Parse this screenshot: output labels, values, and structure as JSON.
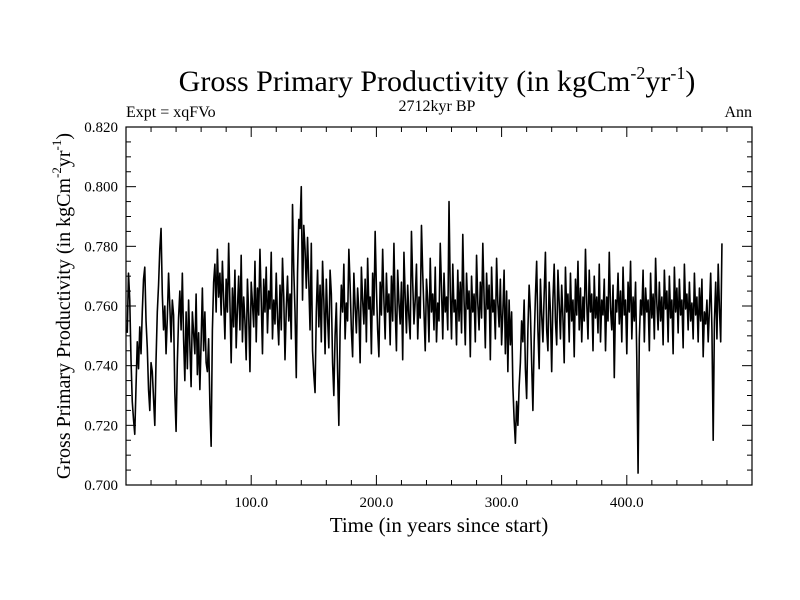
{
  "chart_data": {
    "type": "line",
    "title_main": "Gross Primary Productivity (in kgCm",
    "title_sup1": "-2",
    "title_mid": "yr",
    "title_sup2": "-1",
    "title_close": ")",
    "subtitle": "2712kyr BP",
    "left_label": "Expt = xqFVo",
    "right_label": "Ann",
    "xlabel": "Time (in years since start)",
    "ylabel_main": "Gross Primary Productivity (in kgCm",
    "ylabel_sup1": "-2",
    "ylabel_mid": "yr",
    "ylabel_sup2": "-1",
    "ylabel_close": ")",
    "xlim": [
      0,
      500
    ],
    "ylim": [
      0.7,
      0.82
    ],
    "x_ticks": [
      {
        "value": 100,
        "label": "100.0"
      },
      {
        "value": 200,
        "label": "200.0"
      },
      {
        "value": 300,
        "label": "300.0"
      },
      {
        "value": 400,
        "label": "400.0"
      }
    ],
    "y_ticks": [
      {
        "value": 0.7,
        "label": "0.700"
      },
      {
        "value": 0.72,
        "label": "0.720"
      },
      {
        "value": 0.74,
        "label": "0.740"
      },
      {
        "value": 0.76,
        "label": "0.760"
      },
      {
        "value": 0.78,
        "label": "0.780"
      },
      {
        "value": 0.8,
        "label": "0.800"
      },
      {
        "value": 0.82,
        "label": "0.820"
      }
    ],
    "series": [
      {
        "name": "GPP",
        "x_start": 1,
        "x_step": 1,
        "values": [
          0.751,
          0.771,
          0.762,
          0.742,
          0.728,
          0.722,
          0.717,
          0.733,
          0.748,
          0.739,
          0.753,
          0.744,
          0.758,
          0.769,
          0.773,
          0.755,
          0.746,
          0.732,
          0.725,
          0.741,
          0.738,
          0.729,
          0.72,
          0.742,
          0.758,
          0.767,
          0.779,
          0.786,
          0.764,
          0.752,
          0.76,
          0.744,
          0.756,
          0.771,
          0.76,
          0.748,
          0.762,
          0.757,
          0.731,
          0.718,
          0.741,
          0.756,
          0.765,
          0.752,
          0.771,
          0.749,
          0.735,
          0.758,
          0.739,
          0.762,
          0.747,
          0.733,
          0.758,
          0.751,
          0.744,
          0.764,
          0.737,
          0.751,
          0.732,
          0.748,
          0.766,
          0.745,
          0.758,
          0.741,
          0.738,
          0.749,
          0.727,
          0.713,
          0.752,
          0.768,
          0.774,
          0.758,
          0.779,
          0.763,
          0.771,
          0.757,
          0.775,
          0.762,
          0.749,
          0.769,
          0.758,
          0.781,
          0.761,
          0.741,
          0.766,
          0.753,
          0.772,
          0.746,
          0.759,
          0.77,
          0.752,
          0.777,
          0.748,
          0.763,
          0.755,
          0.742,
          0.769,
          0.757,
          0.738,
          0.768,
          0.761,
          0.753,
          0.775,
          0.748,
          0.766,
          0.757,
          0.779,
          0.762,
          0.744,
          0.769,
          0.758,
          0.773,
          0.751,
          0.765,
          0.759,
          0.778,
          0.749,
          0.762,
          0.754,
          0.771,
          0.756,
          0.747,
          0.767,
          0.752,
          0.776,
          0.763,
          0.742,
          0.759,
          0.77,
          0.755,
          0.764,
          0.749,
          0.794,
          0.772,
          0.758,
          0.736,
          0.771,
          0.789,
          0.786,
          0.8,
          0.762,
          0.787,
          0.779,
          0.766,
          0.783,
          0.768,
          0.752,
          0.781,
          0.745,
          0.737,
          0.731,
          0.758,
          0.772,
          0.753,
          0.767,
          0.748,
          0.775,
          0.762,
          0.744,
          0.769,
          0.756,
          0.746,
          0.772,
          0.764,
          0.741,
          0.73,
          0.75,
          0.761,
          0.738,
          0.72,
          0.752,
          0.767,
          0.758,
          0.774,
          0.749,
          0.761,
          0.755,
          0.779,
          0.767,
          0.752,
          0.743,
          0.771,
          0.76,
          0.751,
          0.766,
          0.758,
          0.741,
          0.773,
          0.762,
          0.754,
          0.769,
          0.748,
          0.776,
          0.759,
          0.763,
          0.744,
          0.771,
          0.757,
          0.785,
          0.766,
          0.752,
          0.743,
          0.768,
          0.757,
          0.779,
          0.762,
          0.749,
          0.771,
          0.758,
          0.764,
          0.747,
          0.77,
          0.755,
          0.781,
          0.759,
          0.745,
          0.772,
          0.761,
          0.754,
          0.768,
          0.742,
          0.778,
          0.763,
          0.751,
          0.767,
          0.756,
          0.749,
          0.785,
          0.768,
          0.754,
          0.762,
          0.774,
          0.749,
          0.763,
          0.756,
          0.787,
          0.771,
          0.758,
          0.745,
          0.769,
          0.762,
          0.748,
          0.776,
          0.758,
          0.764,
          0.752,
          0.773,
          0.748,
          0.761,
          0.755,
          0.781,
          0.766,
          0.749,
          0.771,
          0.758,
          0.763,
          0.752,
          0.795,
          0.765,
          0.749,
          0.774,
          0.758,
          0.762,
          0.747,
          0.772,
          0.755,
          0.768,
          0.751,
          0.784,
          0.762,
          0.747,
          0.771,
          0.759,
          0.765,
          0.743,
          0.77,
          0.758,
          0.764,
          0.748,
          0.777,
          0.761,
          0.752,
          0.768,
          0.756,
          0.781,
          0.763,
          0.746,
          0.771,
          0.759,
          0.767,
          0.742,
          0.773,
          0.758,
          0.762,
          0.749,
          0.776,
          0.761,
          0.753,
          0.769,
          0.747,
          0.758,
          0.772,
          0.744,
          0.765,
          0.738,
          0.762,
          0.747,
          0.758,
          0.733,
          0.722,
          0.714,
          0.728,
          0.72,
          0.733,
          0.741,
          0.755,
          0.748,
          0.762,
          0.739,
          0.729,
          0.752,
          0.767,
          0.758,
          0.741,
          0.725,
          0.748,
          0.763,
          0.775,
          0.752,
          0.739,
          0.769,
          0.757,
          0.748,
          0.764,
          0.778,
          0.752,
          0.745,
          0.768,
          0.758,
          0.738,
          0.762,
          0.774,
          0.755,
          0.747,
          0.772,
          0.761,
          0.749,
          0.767,
          0.756,
          0.741,
          0.773,
          0.758,
          0.764,
          0.748,
          0.771,
          0.755,
          0.762,
          0.743,
          0.769,
          0.757,
          0.775,
          0.752,
          0.766,
          0.748,
          0.763,
          0.755,
          0.779,
          0.761,
          0.749,
          0.772,
          0.758,
          0.764,
          0.745,
          0.77,
          0.756,
          0.763,
          0.751,
          0.774,
          0.748,
          0.762,
          0.757,
          0.769,
          0.745,
          0.763,
          0.755,
          0.778,
          0.759,
          0.752,
          0.767,
          0.736,
          0.762,
          0.758,
          0.771,
          0.754,
          0.765,
          0.748,
          0.773,
          0.757,
          0.762,
          0.744,
          0.768,
          0.758,
          0.775,
          0.749,
          0.763,
          0.755,
          0.768,
          0.742,
          0.704,
          0.749,
          0.762,
          0.757,
          0.772,
          0.748,
          0.766,
          0.758,
          0.762,
          0.745,
          0.771,
          0.756,
          0.764,
          0.749,
          0.776,
          0.761,
          0.752,
          0.768,
          0.755,
          0.763,
          0.747,
          0.772,
          0.759,
          0.765,
          0.748,
          0.77,
          0.756,
          0.762,
          0.744,
          0.773,
          0.758,
          0.766,
          0.751,
          0.769,
          0.757,
          0.762,
          0.746,
          0.774,
          0.759,
          0.764,
          0.752,
          0.768,
          0.755,
          0.761,
          0.749,
          0.771,
          0.757,
          0.763,
          0.748,
          0.766,
          0.755,
          0.769,
          0.743,
          0.758,
          0.754,
          0.762,
          0.748,
          0.759,
          0.771,
          0.752,
          0.715,
          0.755,
          0.768,
          0.749,
          0.774,
          0.759,
          0.748,
          0.781
        ]
      }
    ]
  }
}
